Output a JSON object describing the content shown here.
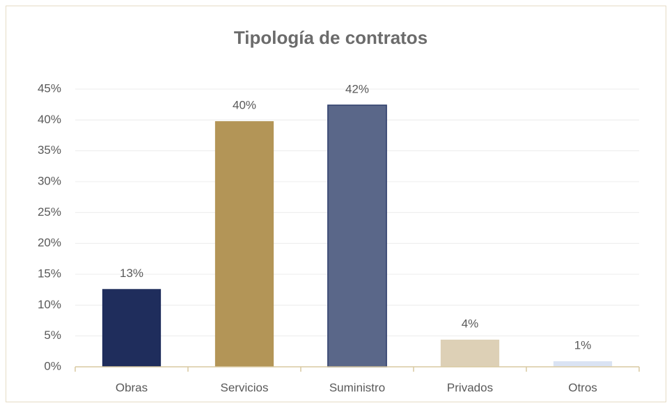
{
  "chart_data": {
    "type": "bar",
    "title": "Tipología de contratos",
    "categories": [
      "Obras",
      "Servicios",
      "Suministro",
      "Privados",
      "Otros"
    ],
    "values": [
      12.6,
      39.8,
      42.4,
      4.4,
      0.9
    ],
    "value_labels": [
      "13%",
      "40%",
      "42%",
      "4%",
      "1%"
    ],
    "colors": [
      "#1f2d5c",
      "#b39557",
      "#5a6789",
      "#ddd0b6",
      "#dae3f3"
    ],
    "ylim": [
      0,
      45
    ],
    "yticks": [
      {
        "value": 0,
        "label": "0%"
      },
      {
        "value": 5,
        "label": "5%"
      },
      {
        "value": 10,
        "label": "10%"
      },
      {
        "value": 15,
        "label": "15%"
      },
      {
        "value": 20,
        "label": "20%"
      },
      {
        "value": 25,
        "label": "25%"
      },
      {
        "value": 30,
        "label": "30%"
      },
      {
        "value": 35,
        "label": "35%"
      },
      {
        "value": 40,
        "label": "40%"
      },
      {
        "value": 45,
        "label": "45%"
      }
    ],
    "grid": true
  }
}
